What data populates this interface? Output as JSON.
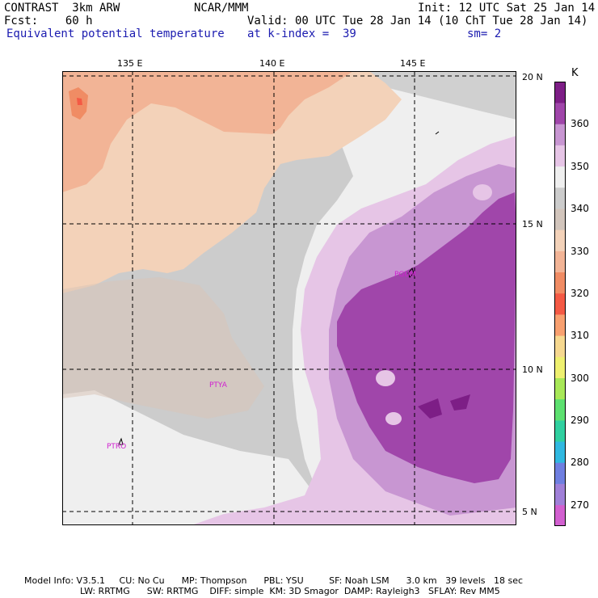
{
  "header": {
    "line1_left": "CONTRAST  3km ARW",
    "line1_mid": "NCAR/MMM",
    "line1_right": "Init: 12 UTC Sat 25 Jan 14",
    "line2_left": "Fcst:    60 h",
    "line2_right": "Valid: 00 UTC Tue 28 Jan 14 (10 ChT Tue 28 Jan 14)",
    "line3_left": "Equivalent potential temperature",
    "line3_mid": "at k-index =  39",
    "line3_right": "sm= 2"
  },
  "axes": {
    "lon_labels": [
      "135 E",
      "140 E",
      "145 E"
    ],
    "lat_labels": [
      "20 N",
      "15 N",
      "10 N",
      "5 N"
    ]
  },
  "stations": [
    {
      "name": "PGUM"
    },
    {
      "name": "PTYA"
    },
    {
      "name": "PTRO"
    }
  ],
  "colorbar": {
    "unit": "K",
    "labels": [
      "270",
      "280",
      "290",
      "300",
      "310",
      "320",
      "330",
      "340",
      "350",
      "360"
    ],
    "colors": [
      "#d260d0",
      "#a080d8",
      "#6f7fe0",
      "#30b8e0",
      "#30d0a0",
      "#5de070",
      "#a8e858",
      "#eef070",
      "#f6d890",
      "#f8a070",
      "#f45a45",
      "#f08c64",
      "#f2b496",
      "#f3d2b9",
      "#d2c5bc",
      "#cccccc",
      "#efefef",
      "#e6c5e6",
      "#c896d2",
      "#a046aa",
      "#7d1e86"
    ]
  },
  "footer": {
    "line1": "Model Info: V3.5.1     CU: No Cu      MP: Thompson      PBL: YSU         SF: Noah LSM      3.0 km   39 levels   18 sec",
    "line2": "LW: RRTMG      SW: RRTMG    DIFF: simple  KM: 3D Smagor  DAMP: Rayleigh3   SFLAY: Rev MM5"
  }
}
